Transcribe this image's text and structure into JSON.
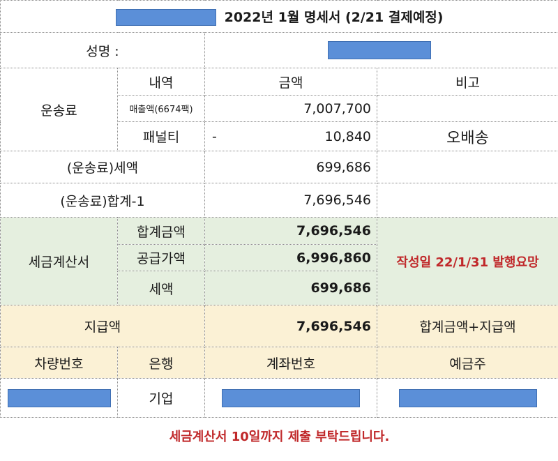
{
  "title": "2022년 1월 명세서 (2/21 결제예정)",
  "name_label": "성명 :",
  "shipping": {
    "group_label": "운송료",
    "col_item": "내역",
    "col_amount": "금액",
    "col_note": "비고",
    "sales_label": "매출액(6674팩)",
    "sales_amount": "7,007,700",
    "penalty_label": "패널티",
    "penalty_sign": "-",
    "penalty_amount": "10,840",
    "penalty_note": "오배송"
  },
  "tax_row": {
    "label": "(운송료)세액",
    "amount": "699,686"
  },
  "total1_row": {
    "label": "(운송료)합계-1",
    "amount": "7,696,546"
  },
  "invoice": {
    "group_label": "세금계산서",
    "total_label": "합계금액",
    "total_amount": "7,696,546",
    "supply_label": "공급가액",
    "supply_amount": "6,996,860",
    "tax_label": "세액",
    "tax_amount": "699,686",
    "note": "작성일 22/1/31 발행요망"
  },
  "payment": {
    "label": "지급액",
    "amount": "7,696,546",
    "note": "합계금액+지급액"
  },
  "bank": {
    "col_vehicle": "차량번호",
    "col_bank": "은행",
    "col_account": "계좌번호",
    "col_holder": "예금주",
    "bank_name": "기업"
  },
  "footer_notice": "세금계산서 10일까지 제출 부탁드립니다.",
  "colors": {
    "redact_fill": "#5b8fd8",
    "invoice_bg": "#e5efdf",
    "payment_bg": "#fbf1d5",
    "alert_text": "#c0282a"
  }
}
